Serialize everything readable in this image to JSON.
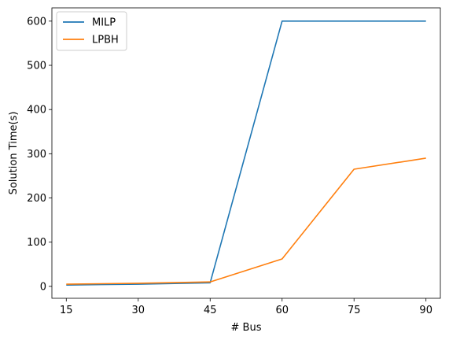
{
  "chart_data": {
    "type": "line",
    "title": "",
    "xlabel": "# Bus",
    "ylabel": "Solution Time(s)",
    "x": [
      15,
      30,
      45,
      60,
      75,
      90
    ],
    "x_ticks": [
      "15",
      "30",
      "45",
      "60",
      "75",
      "90"
    ],
    "y_ticks": [
      "0",
      "100",
      "200",
      "300",
      "400",
      "500",
      "600"
    ],
    "xlim": [
      12,
      93
    ],
    "ylim": [
      -27,
      630
    ],
    "grid": false,
    "legend_position": "upper-left",
    "series": [
      {
        "name": "MILP",
        "color": "#1f77b4",
        "values": [
          3,
          5,
          8,
          600,
          600,
          600
        ]
      },
      {
        "name": "LPBH",
        "color": "#ff7f0e",
        "values": [
          5,
          7,
          10,
          62,
          265,
          290
        ]
      }
    ]
  }
}
